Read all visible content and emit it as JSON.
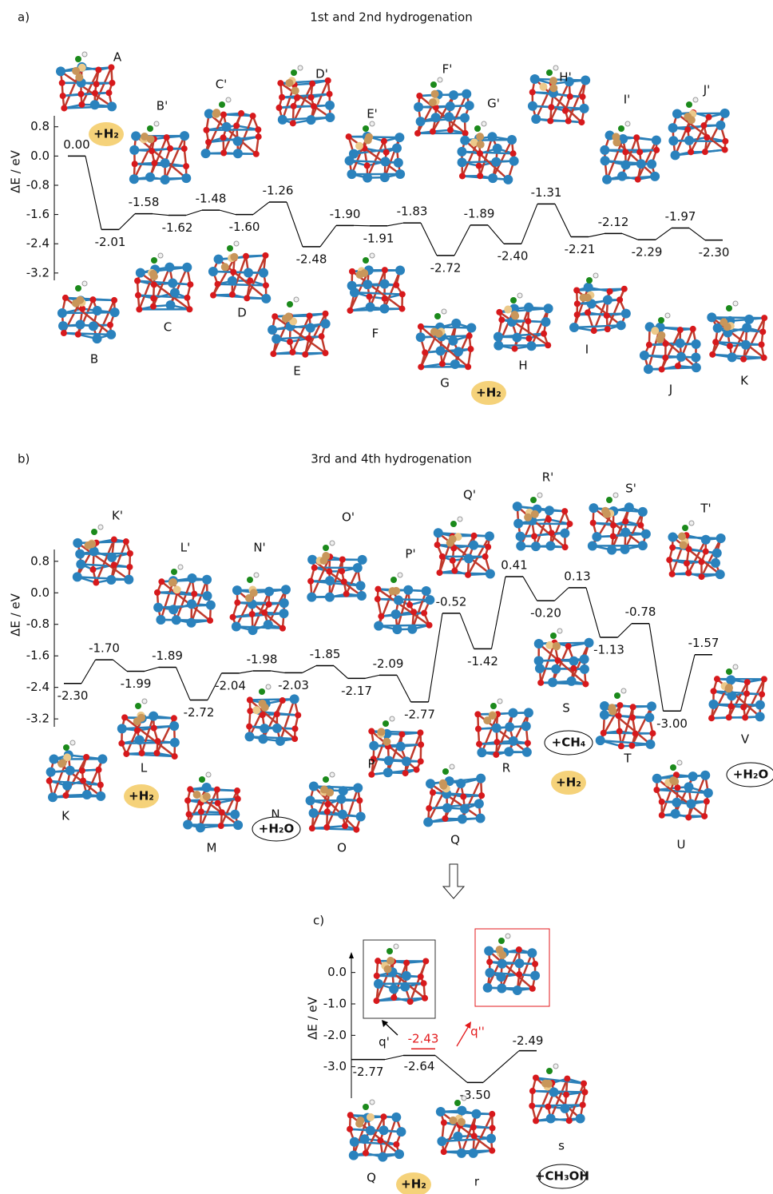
{
  "chart_data": [
    {
      "type": "step",
      "panel_label": "a)",
      "title": "1st and 2nd hydrogenation",
      "ylabel": "ΔE / eV",
      "color": "#000000",
      "values": [
        0.0,
        -2.01,
        -1.58,
        -1.62,
        -1.48,
        -1.6,
        -1.26,
        -2.48,
        -1.9,
        -1.91,
        -1.83,
        -2.72,
        -1.89,
        -2.4,
        -1.31,
        -2.21,
        -2.12,
        -2.29,
        -1.97,
        -2.3
      ],
      "value_labels": [
        "0.00",
        "-2.01",
        "-1.58",
        "-1.62",
        "-1.48",
        "-1.60",
        "-1.26",
        "-2.48",
        "-1.90",
        "-1.91",
        "-1.83",
        "-2.72",
        "-1.89",
        "-2.40",
        "-1.31",
        "-2.21",
        "-2.12",
        "-2.29",
        "-1.97",
        "-2.30"
      ],
      "ylim": [
        -3.4,
        1.1
      ],
      "yticks": [
        0.8,
        {
          "value": 0,
          "label": "0.0"
        },
        -0.8,
        -1.6,
        -2.4,
        -3.2
      ],
      "structures": [
        "A",
        "B'",
        "B",
        "C'",
        "C",
        "D'",
        "D",
        "E'",
        "E",
        "F'",
        "F",
        "G'",
        "G",
        "H'",
        "H",
        "I'",
        "I",
        "J'",
        "J",
        "K"
      ],
      "additives": [
        "+H₂",
        "+H₂"
      ]
    },
    {
      "type": "step",
      "panel_label": "b)",
      "title": "3rd and 4th hydrogenation",
      "ylabel": "ΔE / eV",
      "color": "#000000",
      "values": [
        -2.3,
        -1.7,
        -1.99,
        -1.89,
        -2.72,
        -2.04,
        -1.98,
        -2.03,
        -1.85,
        -2.17,
        -2.09,
        -2.77,
        -0.52,
        -1.42,
        0.41,
        -0.2,
        0.13,
        -1.13,
        -0.78,
        -3.0,
        -1.57
      ],
      "value_labels": [
        "-2.30",
        "-1.70",
        "-1.99",
        "-1.89",
        "-2.72",
        "-2.04",
        "-1.98",
        "-2.03",
        "-1.85",
        "-2.17",
        "-2.09",
        "-2.77",
        "-0.52",
        "-1.42",
        "0.41",
        "-0.20",
        "0.13",
        "-1.13",
        "-0.78",
        "-3.00",
        "-1.57"
      ],
      "ylim": [
        -3.4,
        1.1
      ],
      "yticks": [
        0.8,
        {
          "value": 0,
          "label": "0.0"
        },
        -0.8,
        -1.6,
        -2.4,
        -3.2
      ],
      "structures": [
        "K'",
        "L'",
        "N'",
        "O'",
        "P'",
        "Q'",
        "R'",
        "S'",
        "T'",
        "K",
        "L",
        "M",
        "N",
        "O",
        "P",
        "Q",
        "R",
        "S",
        "T",
        "U",
        "V"
      ],
      "additives": [
        "+H₂",
        "+H₂O",
        "+CH₄",
        "+H₂",
        "+H₂O"
      ]
    },
    {
      "type": "step",
      "panel_label": "c)",
      "ylabel": "ΔE / eV",
      "color": "#000000",
      "values": [
        -2.77,
        -2.64,
        -3.5,
        -2.49
      ],
      "value_labels": [
        "-2.77",
        "-2.64",
        "-3.50",
        "-2.49"
      ],
      "branch": {
        "values": [
          -2.43
        ],
        "value_labels": [
          "-2.43"
        ],
        "color": "#e31a1c"
      },
      "ylim": [
        -4.0,
        0.5
      ],
      "yticks": [
        {
          "value": 0,
          "label": "0.0"
        },
        {
          "value": -1,
          "label": "-1.0"
        },
        {
          "value": -2,
          "label": "-2.0"
        },
        {
          "value": -3,
          "label": "-3.0"
        }
      ],
      "structures": [
        "Q",
        "r",
        "s"
      ],
      "branch_labels": [
        "q'",
        "q''"
      ],
      "additives": [
        "+H₂",
        "+CH₃OH"
      ]
    }
  ]
}
